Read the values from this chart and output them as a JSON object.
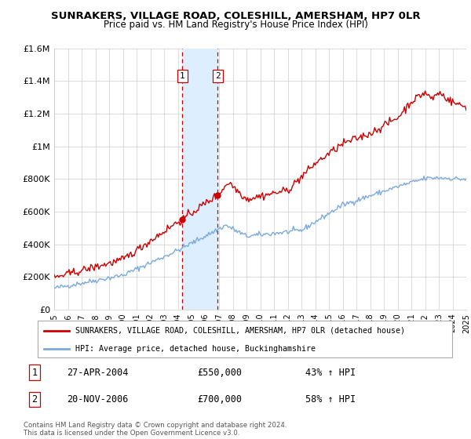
{
  "title": "SUNRAKERS, VILLAGE ROAD, COLESHILL, AMERSHAM, HP7 0LR",
  "subtitle": "Price paid vs. HM Land Registry's House Price Index (HPI)",
  "legend_line1": "SUNRAKERS, VILLAGE ROAD, COLESHILL, AMERSHAM, HP7 0LR (detached house)",
  "legend_line2": "HPI: Average price, detached house, Buckinghamshire",
  "transaction1_date": "27-APR-2004",
  "transaction1_price": "£550,000",
  "transaction1_hpi": "43% ↑ HPI",
  "transaction2_date": "20-NOV-2006",
  "transaction2_price": "£700,000",
  "transaction2_hpi": "58% ↑ HPI",
  "footer1": "Contains HM Land Registry data © Crown copyright and database right 2024.",
  "footer2": "This data is licensed under the Open Government Licence v3.0.",
  "hpi_color": "#7aaadd",
  "price_color": "#cc0000",
  "marker_color": "#cc0000",
  "vline_color": "#cc0000",
  "shade_color": "#ddeeff",
  "ylim": [
    0,
    1600000
  ],
  "yticks": [
    0,
    200000,
    400000,
    600000,
    800000,
    1000000,
    1200000,
    1400000,
    1600000
  ],
  "ytick_labels": [
    "£0",
    "£200K",
    "£400K",
    "£600K",
    "£800K",
    "£1M",
    "£1.2M",
    "£1.4M",
    "£1.6M"
  ],
  "xmin": 1995,
  "xmax": 2025,
  "transaction1_x": 2004.32,
  "transaction1_y": 550000,
  "transaction2_x": 2006.9,
  "transaction2_y": 700000,
  "background_color": "#ffffff",
  "grid_color": "#cccccc"
}
